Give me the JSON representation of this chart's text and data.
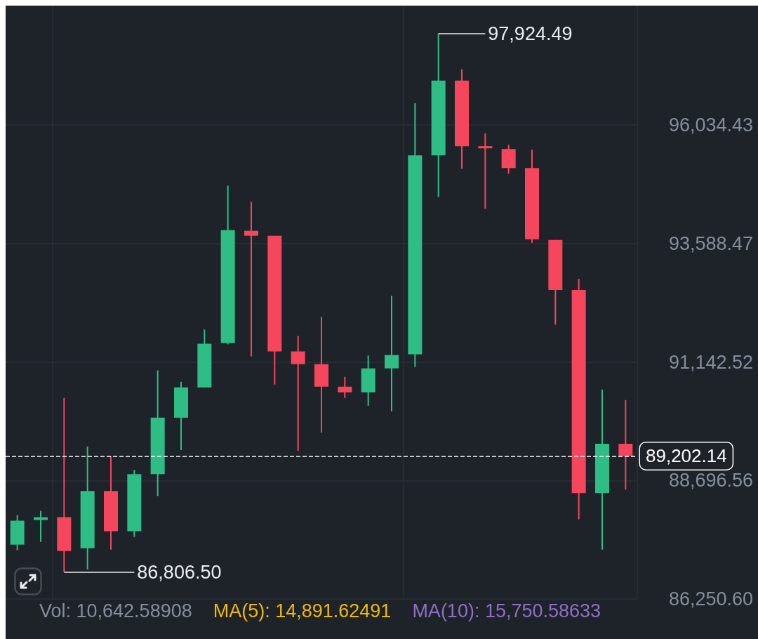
{
  "chart_data": {
    "type": "candlestick",
    "categories": [
      null,
      null,
      null,
      null,
      null,
      null,
      null,
      null,
      null,
      null,
      null,
      null,
      null,
      null,
      null,
      null,
      null,
      null,
      null,
      null,
      null,
      null,
      null,
      null,
      null,
      null,
      null
    ],
    "ohlc": [
      [
        87372,
        87983,
        87255,
        87867
      ],
      [
        87881,
        88071,
        87430,
        87939
      ],
      [
        87939,
        90400,
        86806.5,
        87241
      ],
      [
        87299,
        89396,
        86862,
        88478
      ],
      [
        88478,
        89192,
        87270,
        87648
      ],
      [
        87648,
        88915,
        87532,
        88828
      ],
      [
        88828,
        90968,
        88376,
        89993
      ],
      [
        89993,
        90735,
        89323,
        90619
      ],
      [
        90619,
        91812,
        90619,
        91521
      ],
      [
        91536,
        94783,
        91507,
        93865
      ],
      [
        93851,
        94448,
        91259,
        93749
      ],
      [
        93749,
        93749,
        90677,
        91361
      ],
      [
        91361,
        91681,
        89308,
        91099
      ],
      [
        91099,
        92075,
        89687,
        90633
      ],
      [
        90633,
        90837,
        90400,
        90517
      ],
      [
        90517,
        91274,
        90240,
        91011
      ],
      [
        91011,
        92511,
        90124,
        91288
      ],
      [
        91303,
        96486,
        91041,
        95409
      ],
      [
        95409,
        97924.49,
        94550,
        96952
      ],
      [
        96952,
        97184,
        95132,
        95598
      ],
      [
        95598,
        95860,
        94302,
        95554
      ],
      [
        95540,
        95627,
        95030,
        95147
      ],
      [
        95147,
        95525,
        93603,
        93676
      ],
      [
        93662,
        93662,
        91915,
        92628
      ],
      [
        92628,
        92861,
        87896,
        88435
      ],
      [
        88435,
        90575,
        87270,
        89454
      ],
      [
        89454,
        90357,
        88507,
        89202.14
      ]
    ],
    "colors": [
      "#2ebd85",
      "#2ebd85",
      "#f6465d",
      "#2ebd85",
      "#f6465d",
      "#2ebd85",
      "#2ebd85",
      "#2ebd85",
      "#2ebd85",
      "#2ebd85",
      "#f6465d",
      "#f6465d",
      "#f6465d",
      "#f6465d",
      "#f6465d",
      "#2ebd85",
      "#2ebd85",
      "#2ebd85",
      "#2ebd85",
      "#f6465d",
      "#f6465d",
      "#f6465d",
      "#f6465d",
      "#f6465d",
      "#f6465d",
      "#2ebd85",
      "#f6465d"
    ],
    "ylim": [
      86250.6,
      98500
    ],
    "yticks": [
      {
        "value": 86250.6,
        "label": "86,250.60"
      },
      {
        "value": 88696.56,
        "label": "88,696.56"
      },
      {
        "value": 91142.52,
        "label": "91,142.52"
      },
      {
        "value": 93588.47,
        "label": "93,588.47"
      },
      {
        "value": 96034.43,
        "label": "96,034.43"
      }
    ],
    "tick_labels": "y",
    "grid": true,
    "ref_lines": [
      {
        "axis": "y",
        "value": 89202.14,
        "label": "89,202.14",
        "color": "#ffffff",
        "line_style": "dashed"
      }
    ],
    "annotations": [
      "97,924.49",
      "86,806.50",
      "Vol: 10,642.58908",
      "MA(5): 14,891.62491",
      "MA(10): 15,750.58633"
    ]
  }
}
